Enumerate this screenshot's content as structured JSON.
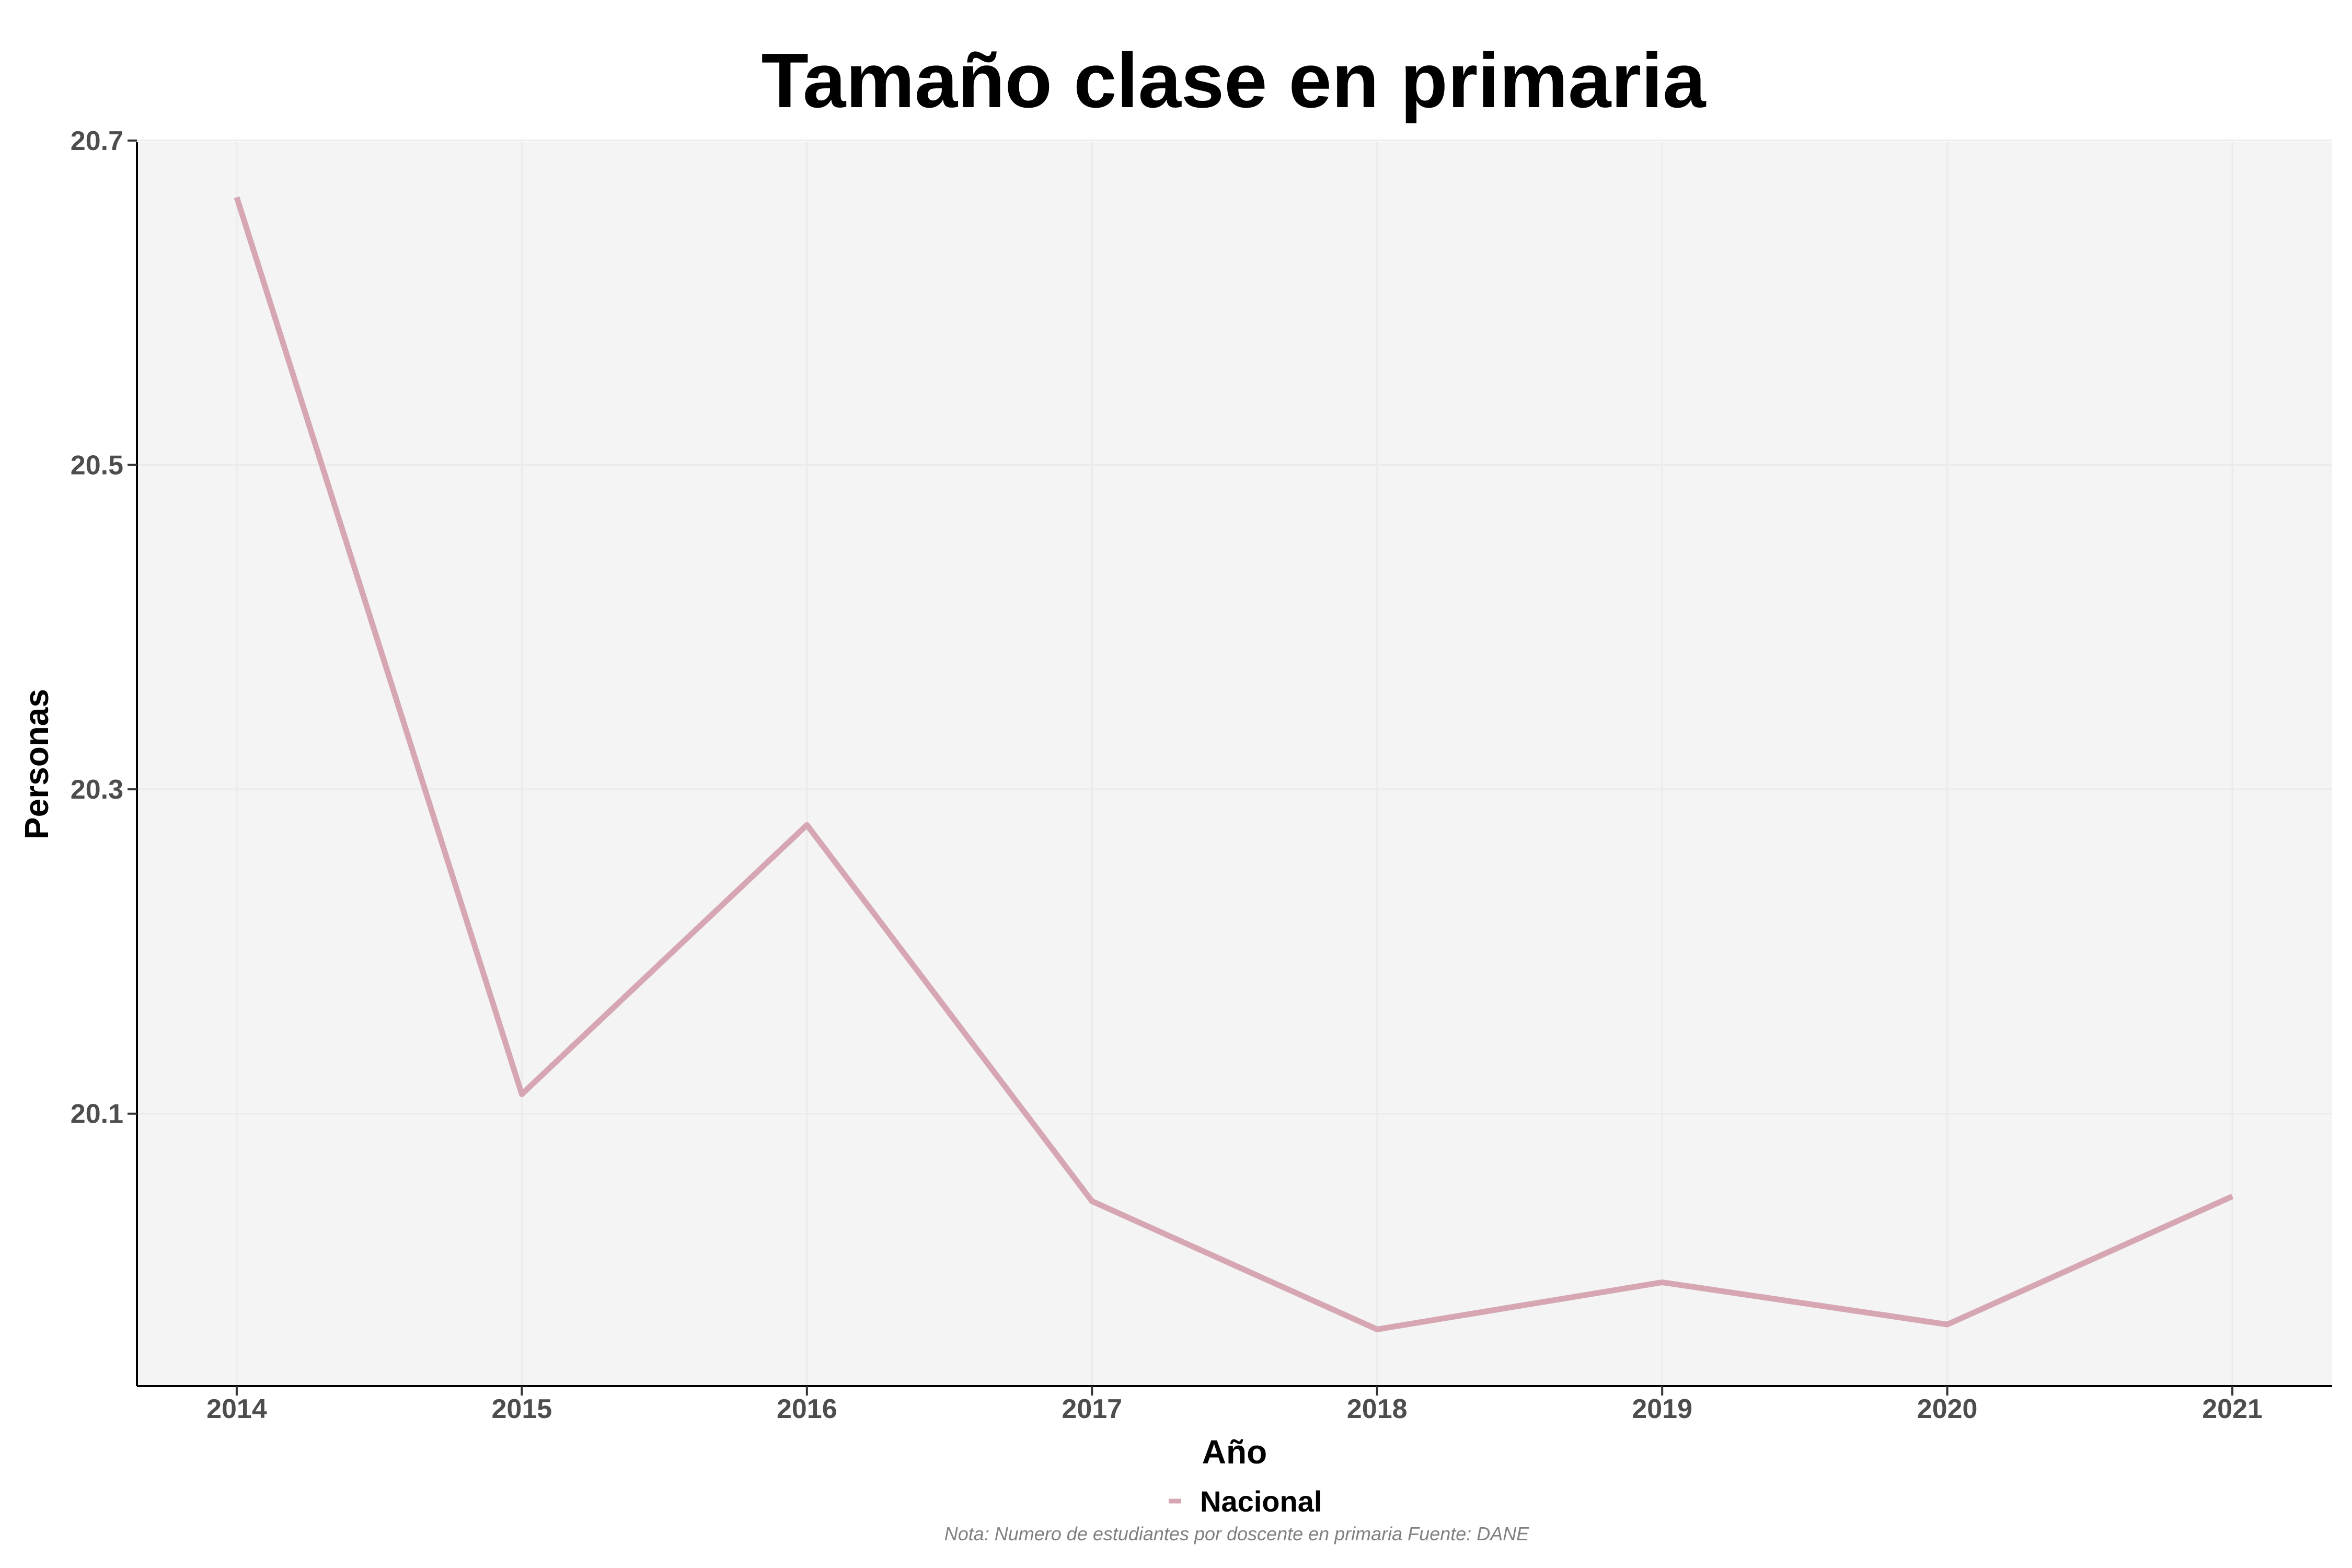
{
  "chart_data": {
    "type": "line",
    "title": "Tamaño clase en primaria",
    "xlabel": "Año",
    "ylabel": "Personas",
    "x": [
      2014,
      2015,
      2016,
      2017,
      2018,
      2019,
      2020,
      2021
    ],
    "x_ticks": [
      "2014",
      "2015",
      "2016",
      "2017",
      "2018",
      "2019",
      "2020",
      "2021"
    ],
    "y_ticks": [
      "20.1",
      "20.3",
      "20.5",
      "20.7"
    ],
    "xlim": [
      2013.65,
      2021.35
    ],
    "ylim": [
      19.932,
      20.699
    ],
    "series": [
      {
        "name": "Nacional",
        "color": "#d6a7b3",
        "values": [
          20.665,
          20.112,
          20.278,
          20.046,
          19.967,
          19.996,
          19.97,
          20.049
        ]
      }
    ],
    "legend": "bottom",
    "grid": true,
    "caption": "Nota: Numero de estudiantes por doscente en primaria Fuente: DANE"
  }
}
